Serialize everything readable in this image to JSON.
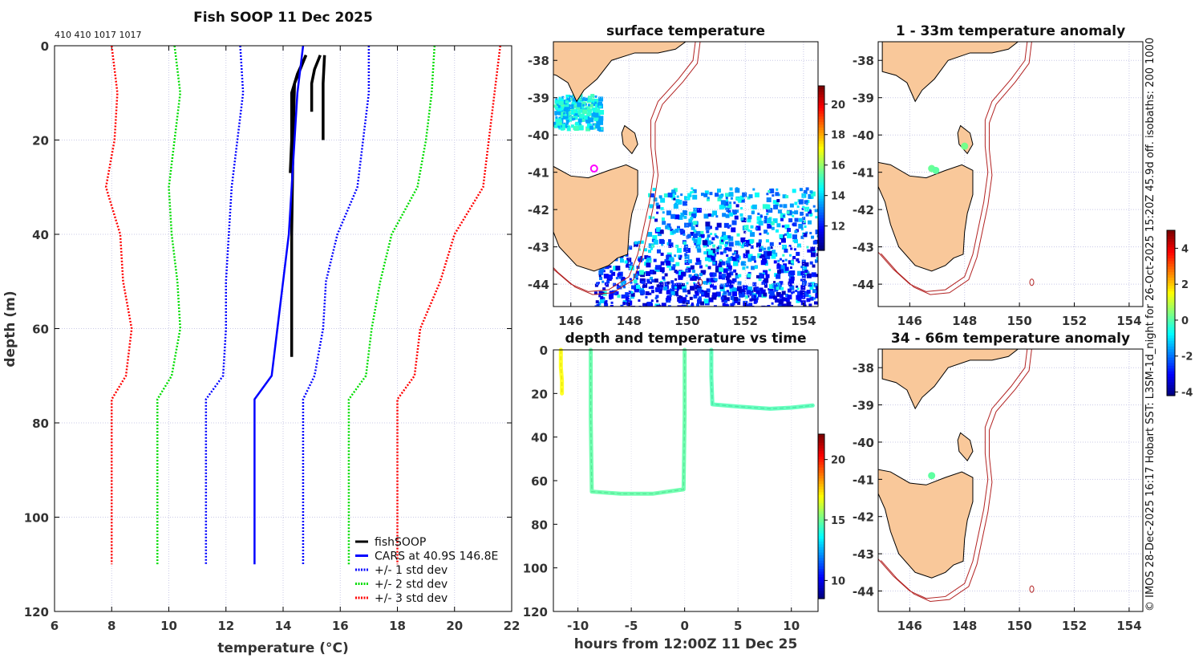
{
  "footer_credit": "© IMOS 28-Dec-2025 16:17 Hobart SST: L3SM-1d_night for 26-Oct-2025 15:20Z 45.9d off. isobaths: 200  1000",
  "colors": {
    "land": "#f9c89a",
    "isobath": "#b22222",
    "fishsoop": "#000000",
    "cars": "#0000ff",
    "sd1": "#0000ff",
    "sd2": "#00dd00",
    "sd3": "#ff0000",
    "marker": "#ff00ff"
  },
  "chart_data": [
    {
      "type": "line",
      "title": "Fish SOOP 11 Dec 2025",
      "top_note": "410 410 1017 1017",
      "xlabel": "temperature (°C)",
      "ylabel": "depth (m)",
      "xlim": [
        6,
        22
      ],
      "ylim": [
        0,
        120
      ],
      "y_inverted": true,
      "xticks": [
        6,
        8,
        10,
        12,
        14,
        16,
        18,
        20,
        22
      ],
      "yticks": [
        0,
        20,
        40,
        60,
        80,
        100,
        120
      ],
      "grid": true,
      "legend_position": "bottom-right",
      "legend": [
        "fishSOOP",
        "CARS at 40.9S 146.8E",
        "+/- 1 std dev",
        "+/- 2 std dev",
        "+/- 3 std dev"
      ],
      "series": [
        {
          "name": "fishSOOP",
          "style": "solid",
          "color": "#000000",
          "casts": [
            {
              "t": [
                14.8,
                14.5,
                14.3,
                14.3,
                14.25
              ],
              "d": [
                2,
                6,
                10,
                20,
                27
              ]
            },
            {
              "t": [
                14.8,
                14.4,
                14.35,
                14.3,
                14.3,
                14.3
              ],
              "d": [
                2,
                8,
                20,
                40,
                60,
                66
              ]
            },
            {
              "t": [
                15.3,
                15.1,
                15.0,
                15.0
              ],
              "d": [
                2,
                5,
                8,
                14
              ]
            },
            {
              "t": [
                15.45,
                15.4,
                15.4
              ],
              "d": [
                2,
                8,
                20
              ]
            }
          ]
        },
        {
          "name": "CARS at 40.9S 146.8E",
          "style": "solid",
          "color": "#0000ff",
          "t": [
            14.7,
            14.5,
            14.4,
            14.3,
            14.2,
            14.0,
            13.8,
            13.6,
            13.0,
            13.0
          ],
          "d": [
            0,
            10,
            20,
            30,
            40,
            50,
            60,
            70,
            75,
            110
          ]
        },
        {
          "name": "-1 std dev",
          "style": "dotted",
          "color": "#0000ff",
          "t": [
            12.5,
            12.6,
            12.4,
            12.2,
            12.1,
            12.0,
            12.0,
            11.9,
            11.3,
            11.3
          ],
          "d": [
            0,
            10,
            20,
            30,
            40,
            50,
            60,
            70,
            75,
            110
          ]
        },
        {
          "name": "+1 std dev",
          "style": "dotted",
          "color": "#0000ff",
          "t": [
            17.0,
            17.0,
            16.8,
            16.6,
            15.9,
            15.5,
            15.4,
            15.1,
            14.7,
            14.7
          ],
          "d": [
            0,
            10,
            20,
            30,
            40,
            50,
            60,
            70,
            75,
            110
          ]
        },
        {
          "name": "-2 std dev",
          "style": "dotted",
          "color": "#00dd00",
          "t": [
            10.2,
            10.4,
            10.2,
            10.0,
            10.1,
            10.3,
            10.4,
            10.1,
            9.6,
            9.6
          ],
          "d": [
            0,
            10,
            20,
            30,
            40,
            50,
            60,
            70,
            75,
            110
          ]
        },
        {
          "name": "+2 std dev",
          "style": "dotted",
          "color": "#00dd00",
          "t": [
            19.3,
            19.2,
            19.0,
            18.7,
            17.8,
            17.4,
            17.1,
            16.9,
            16.3,
            16.3
          ],
          "d": [
            0,
            10,
            20,
            30,
            40,
            50,
            60,
            70,
            75,
            110
          ]
        },
        {
          "name": "-3 std dev",
          "style": "dotted",
          "color": "#ff0000",
          "t": [
            8.0,
            8.2,
            8.1,
            7.8,
            8.3,
            8.4,
            8.7,
            8.5,
            8.0,
            8.0
          ],
          "d": [
            0,
            10,
            20,
            30,
            40,
            50,
            60,
            70,
            75,
            110
          ]
        },
        {
          "name": "+3 std dev",
          "style": "dotted",
          "color": "#ff0000",
          "t": [
            21.6,
            21.4,
            21.2,
            21.0,
            20.0,
            19.5,
            18.8,
            18.6,
            18.0,
            18.0
          ],
          "d": [
            0,
            10,
            20,
            30,
            40,
            50,
            60,
            70,
            75,
            110
          ]
        }
      ]
    },
    {
      "type": "heatmap",
      "title": "surface temperature",
      "xlim": [
        145.4,
        154.5
      ],
      "ylim": [
        -44.6,
        -37.5
      ],
      "xticks": [
        146,
        148,
        150,
        152,
        154
      ],
      "yticks": [
        -38,
        -39,
        -40,
        -41,
        -42,
        -43,
        -44
      ],
      "colorbar": {
        "range": [
          10.4,
          21.2
        ],
        "ticks": [
          12,
          14,
          16,
          18,
          20
        ]
      },
      "marker": {
        "lon": 146.8,
        "lat": -40.9,
        "shape": "open-circle",
        "color": "#ff00ff"
      }
    },
    {
      "type": "scatter",
      "title": "1 - 33m temperature anomaly",
      "xlim": [
        144.85,
        154.5
      ],
      "ylim": [
        -44.6,
        -37.5
      ],
      "xticks": [
        146,
        148,
        150,
        152,
        154
      ],
      "yticks": [
        -38,
        -39,
        -40,
        -41,
        -42,
        -43,
        -44
      ],
      "points": [
        {
          "lon": 146.8,
          "lat": -40.9,
          "anomaly": 0.2
        },
        {
          "lon": 146.95,
          "lat": -40.95,
          "anomaly": 0.1
        },
        {
          "lon": 148.0,
          "lat": -40.3,
          "anomaly": 0.3
        }
      ]
    },
    {
      "type": "scatter",
      "title": "depth and temperature vs time",
      "xlabel": "hours from 12:00Z 11 Dec 25",
      "xlim": [
        -12.3,
        12.5
      ],
      "ylim": [
        0,
        120
      ],
      "y_inverted": true,
      "xticks": [
        -10,
        -5,
        0,
        5,
        10
      ],
      "yticks": [
        0,
        20,
        40,
        60,
        80,
        100,
        120
      ],
      "colorbar": {
        "range": [
          8.5,
          22.1
        ],
        "ticks": [
          10,
          15,
          20
        ]
      },
      "tracks": [
        {
          "h": [
            -11.6,
            -11.6,
            -11.5,
            -11.5
          ],
          "d": [
            0,
            8,
            14,
            20
          ],
          "temp": 17.0
        },
        {
          "h": [
            -8.8,
            -8.8,
            -8.7,
            -6,
            -3,
            -0.1,
            0,
            0
          ],
          "d": [
            0,
            30,
            65,
            66,
            66,
            64,
            30,
            0
          ],
          "temp": 14.8
        },
        {
          "h": [
            2.5,
            2.5,
            2.6,
            5,
            8,
            10,
            12
          ],
          "d": [
            0,
            12,
            25,
            26,
            27,
            26.5,
            25.5
          ],
          "temp": 14.6
        }
      ]
    },
    {
      "type": "scatter",
      "title": "34 - 66m temperature anomaly",
      "xlim": [
        144.85,
        154.5
      ],
      "ylim": [
        -44.55,
        -37.5
      ],
      "xticks": [
        146,
        148,
        150,
        152,
        154
      ],
      "yticks": [
        -38,
        -39,
        -40,
        -41,
        -42,
        -43,
        -44
      ],
      "colorbar": {
        "range": [
          -4.2,
          5.0
        ],
        "ticks": [
          4,
          2,
          0,
          -2,
          -4
        ]
      },
      "points": [
        {
          "lon": 146.8,
          "lat": -40.9,
          "anomaly": 0.1
        }
      ]
    }
  ]
}
